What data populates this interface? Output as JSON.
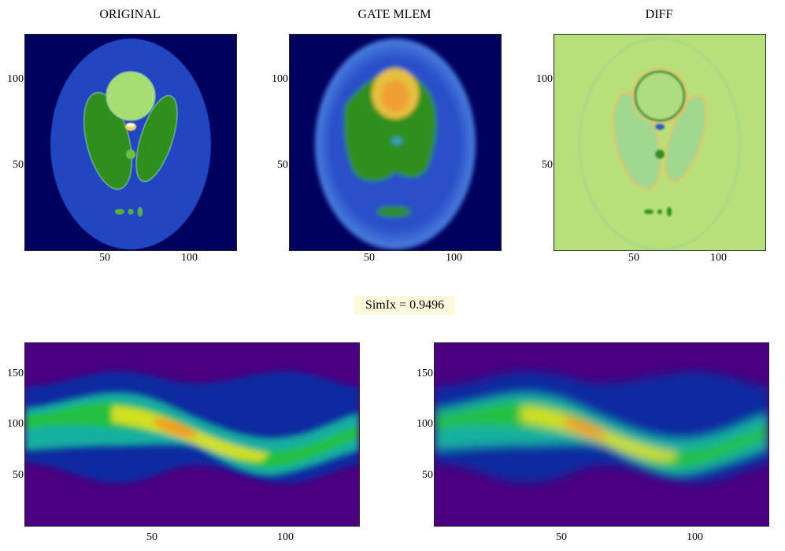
{
  "panels": [
    {
      "title": "ORIGINAL",
      "x_ticks": [
        "50",
        "100"
      ],
      "y_ticks": [
        "100",
        "50"
      ]
    },
    {
      "title": "GATE MLEM",
      "x_ticks": [
        "50",
        "100"
      ],
      "y_ticks": [
        "100",
        "50"
      ]
    },
    {
      "title": "DIFF",
      "x_ticks": [
        "50",
        "100"
      ],
      "y_ticks": [
        "100",
        "50"
      ]
    }
  ],
  "similarity": {
    "label": "SimIx = 0.9496"
  },
  "sinograms": [
    {
      "x_ticks": [
        "50",
        "100"
      ],
      "y_ticks": [
        "150",
        "100",
        "50"
      ]
    },
    {
      "x_ticks": [
        "50",
        "100"
      ],
      "y_ticks": [
        "150",
        "100",
        "50"
      ]
    }
  ],
  "colors": {
    "background_navy": "#00005f",
    "phantom_blue": "#2244c0",
    "green": "#2f8f1a",
    "light_green": "#a6de74",
    "sinogram_bg": "#4a0080",
    "diff_bg": "#b8e07a"
  }
}
